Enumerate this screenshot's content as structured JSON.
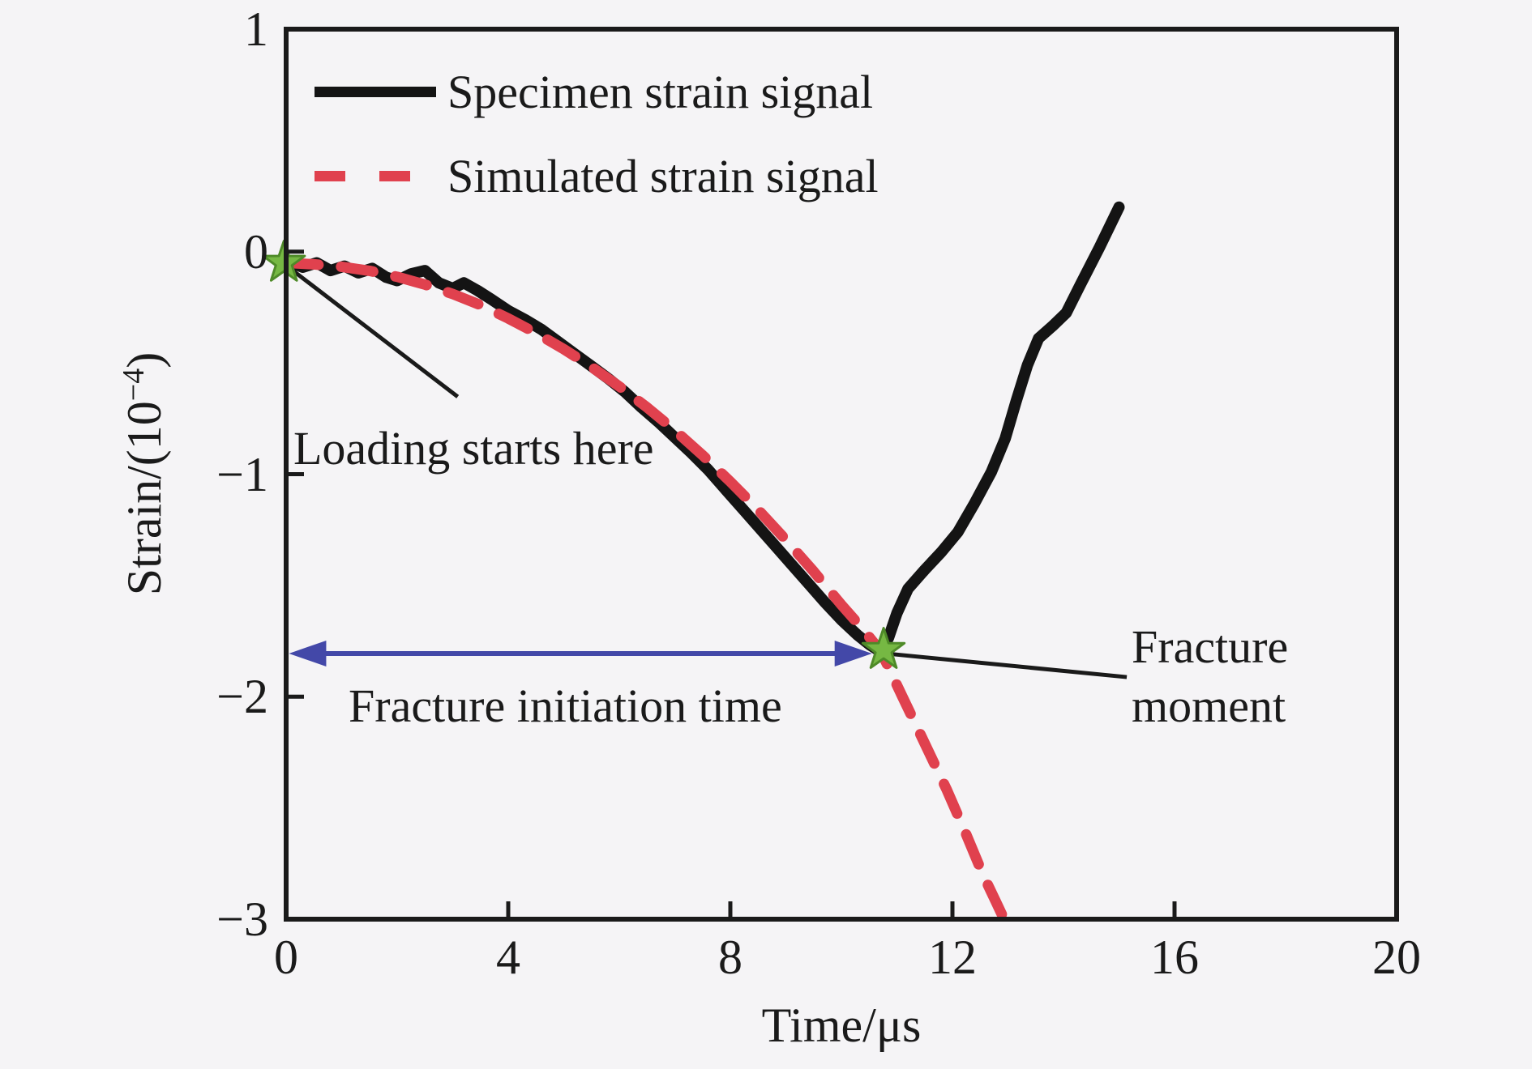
{
  "colors": {
    "background": "#f5f4f6",
    "axis": "#1a1a1a",
    "specimen_line": "#141414",
    "simulated_line": "#e0414e",
    "arrow_blue": "#4348a8",
    "star_fill": "#76b843",
    "star_edge": "#4e8a28"
  },
  "legend": {
    "specimen_label": "Specimen strain signal",
    "simulated_label": "Simulated strain signal"
  },
  "chart_data": {
    "type": "line",
    "title": "",
    "xlabel": "Time/μs",
    "ylabel": "Strain/(10⁻⁴)",
    "ylabel_parts": {
      "base": "Strain/(10",
      "sup": "−4",
      "close": ")"
    },
    "xlim": [
      0,
      20
    ],
    "ylim": [
      -3,
      1
    ],
    "grid": false,
    "legend_position": "top-left",
    "xticks": [
      0,
      4,
      8,
      12,
      16,
      20
    ],
    "xtick_labels": [
      "0",
      "4",
      "8",
      "12",
      "16",
      "20"
    ],
    "yticks": [
      1,
      0,
      -1,
      -2,
      -3
    ],
    "ytick_labels": [
      "1",
      "0",
      "−1",
      "−2",
      "−3"
    ],
    "series": [
      {
        "name": "Specimen strain signal",
        "color_key": "specimen_line",
        "style": "solid",
        "stroke_width": 14,
        "points": [
          [
            0,
            -0.04
          ],
          [
            0.3,
            -0.07
          ],
          [
            0.55,
            -0.05
          ],
          [
            0.8,
            -0.085
          ],
          [
            1.05,
            -0.065
          ],
          [
            1.3,
            -0.095
          ],
          [
            1.55,
            -0.075
          ],
          [
            1.8,
            -0.115
          ],
          [
            2.0,
            -0.13
          ],
          [
            2.25,
            -0.1
          ],
          [
            2.5,
            -0.085
          ],
          [
            2.75,
            -0.14
          ],
          [
            3.0,
            -0.165
          ],
          [
            3.2,
            -0.14
          ],
          [
            3.45,
            -0.175
          ],
          [
            3.7,
            -0.215
          ],
          [
            4.0,
            -0.265
          ],
          [
            4.3,
            -0.305
          ],
          [
            4.6,
            -0.35
          ],
          [
            4.9,
            -0.405
          ],
          [
            5.2,
            -0.46
          ],
          [
            5.5,
            -0.515
          ],
          [
            5.8,
            -0.57
          ],
          [
            6.1,
            -0.63
          ],
          [
            6.4,
            -0.7
          ],
          [
            6.7,
            -0.765
          ],
          [
            7.0,
            -0.835
          ],
          [
            7.3,
            -0.905
          ],
          [
            7.6,
            -0.98
          ],
          [
            7.9,
            -1.065
          ],
          [
            8.2,
            -1.15
          ],
          [
            8.5,
            -1.235
          ],
          [
            8.8,
            -1.32
          ],
          [
            9.1,
            -1.405
          ],
          [
            9.4,
            -1.49
          ],
          [
            9.7,
            -1.575
          ],
          [
            10.0,
            -1.655
          ],
          [
            10.3,
            -1.725
          ],
          [
            10.5,
            -1.765
          ],
          [
            10.72,
            -1.8
          ],
          [
            10.85,
            -1.735
          ],
          [
            11.0,
            -1.625
          ],
          [
            11.2,
            -1.515
          ],
          [
            11.5,
            -1.43
          ],
          [
            11.8,
            -1.35
          ],
          [
            12.1,
            -1.26
          ],
          [
            12.4,
            -1.13
          ],
          [
            12.7,
            -0.99
          ],
          [
            12.95,
            -0.84
          ],
          [
            13.15,
            -0.67
          ],
          [
            13.35,
            -0.51
          ],
          [
            13.55,
            -0.39
          ],
          [
            13.8,
            -0.335
          ],
          [
            14.05,
            -0.275
          ],
          [
            14.3,
            -0.15
          ],
          [
            14.65,
            0.02
          ],
          [
            15.0,
            0.2
          ]
        ]
      },
      {
        "name": "Simulated strain signal",
        "color_key": "simulated_line",
        "style": "dashed",
        "stroke_width": 13,
        "dash": [
          40,
          28
        ],
        "points": [
          [
            0,
            -0.05
          ],
          [
            0.5,
            -0.057
          ],
          [
            1.0,
            -0.068
          ],
          [
            1.5,
            -0.086
          ],
          [
            2.0,
            -0.113
          ],
          [
            2.5,
            -0.148
          ],
          [
            3.0,
            -0.19
          ],
          [
            3.5,
            -0.24
          ],
          [
            4.0,
            -0.3
          ],
          [
            4.5,
            -0.366
          ],
          [
            5.0,
            -0.438
          ],
          [
            5.5,
            -0.518
          ],
          [
            6.0,
            -0.606
          ],
          [
            6.5,
            -0.7
          ],
          [
            7.0,
            -0.803
          ],
          [
            7.5,
            -0.915
          ],
          [
            8.0,
            -1.034
          ],
          [
            8.5,
            -1.16
          ],
          [
            9.0,
            -1.295
          ],
          [
            9.5,
            -1.437
          ],
          [
            10.0,
            -1.587
          ],
          [
            10.4,
            -1.7
          ],
          [
            10.72,
            -1.8
          ],
          [
            11.1,
            -2.0
          ],
          [
            11.5,
            -2.21
          ],
          [
            11.9,
            -2.42
          ],
          [
            12.25,
            -2.62
          ],
          [
            12.55,
            -2.8
          ],
          [
            12.78,
            -2.92
          ],
          [
            12.93,
            -3.0
          ]
        ]
      }
    ],
    "markers": [
      {
        "name": "loading-start-marker",
        "shape": "star",
        "x": -0.04,
        "y": -0.05
      },
      {
        "name": "fracture-point-marker",
        "shape": "star",
        "x": 10.76,
        "y": -1.79
      }
    ],
    "arrows": [
      {
        "name": "loading-pointer-line",
        "from": [
          0.1,
          -0.081
        ],
        "to": [
          3.09,
          -0.652
        ],
        "color_key": "axis",
        "width": 5,
        "heads": "none"
      },
      {
        "name": "fracture-initiation-arrow",
        "from": [
          0.05,
          -1.806
        ],
        "to": [
          10.55,
          -1.806
        ],
        "color_key": "arrow_blue",
        "width": 6,
        "heads": "both"
      },
      {
        "name": "fracture-moment-pointer",
        "from": [
          10.8,
          -1.806
        ],
        "to": [
          15.14,
          -1.912
        ],
        "color_key": "axis",
        "width": 5,
        "heads": "none"
      }
    ],
    "annotations": {
      "loading": {
        "text": "Loading starts here"
      },
      "fracture_initiation": {
        "text": "Fracture initiation time"
      },
      "fracture_moment": {
        "text": "Fracture moment"
      }
    }
  }
}
